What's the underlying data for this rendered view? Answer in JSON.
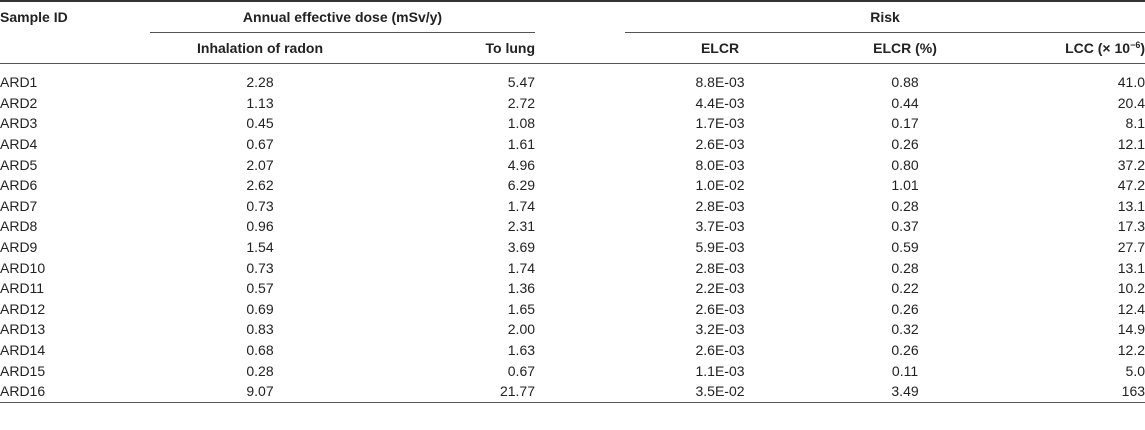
{
  "headers": {
    "sample_id": "Sample ID",
    "annual_effective_dose": "Annual effective dose (mSv/y)",
    "risk": "Risk",
    "inhalation": "Inhalation of radon",
    "to_lung": "To lung",
    "elcr": "ELCR",
    "elcr_pct": "ELCR (%)",
    "lcc_prefix": "LCC (× 10",
    "lcc_exp": "−6",
    "lcc_suffix": ")"
  },
  "rows": [
    {
      "id": "ARD1",
      "inhalation": "2.28",
      "lung": "5.47",
      "elcr": "8.8E-03",
      "elcr_pct": "0.88",
      "lcc": "41.0"
    },
    {
      "id": "ARD2",
      "inhalation": "1.13",
      "lung": "2.72",
      "elcr": "4.4E-03",
      "elcr_pct": "0.44",
      "lcc": "20.4"
    },
    {
      "id": "ARD3",
      "inhalation": "0.45",
      "lung": "1.08",
      "elcr": "1.7E-03",
      "elcr_pct": "0.17",
      "lcc": "8.1"
    },
    {
      "id": "ARD4",
      "inhalation": "0.67",
      "lung": "1.61",
      "elcr": "2.6E-03",
      "elcr_pct": "0.26",
      "lcc": "12.1"
    },
    {
      "id": "ARD5",
      "inhalation": "2.07",
      "lung": "4.96",
      "elcr": "8.0E-03",
      "elcr_pct": "0.80",
      "lcc": "37.2"
    },
    {
      "id": "ARD6",
      "inhalation": "2.62",
      "lung": "6.29",
      "elcr": "1.0E-02",
      "elcr_pct": "1.01",
      "lcc": "47.2"
    },
    {
      "id": "ARD7",
      "inhalation": "0.73",
      "lung": "1.74",
      "elcr": "2.8E-03",
      "elcr_pct": "0.28",
      "lcc": "13.1"
    },
    {
      "id": "ARD8",
      "inhalation": "0.96",
      "lung": "2.31",
      "elcr": "3.7E-03",
      "elcr_pct": "0.37",
      "lcc": "17.3"
    },
    {
      "id": "ARD9",
      "inhalation": "1.54",
      "lung": "3.69",
      "elcr": "5.9E-03",
      "elcr_pct": "0.59",
      "lcc": "27.7"
    },
    {
      "id": "ARD10",
      "inhalation": "0.73",
      "lung": "1.74",
      "elcr": "2.8E-03",
      "elcr_pct": "0.28",
      "lcc": "13.1"
    },
    {
      "id": "ARD11",
      "inhalation": "0.57",
      "lung": "1.36",
      "elcr": "2.2E-03",
      "elcr_pct": "0.22",
      "lcc": "10.2"
    },
    {
      "id": "ARD12",
      "inhalation": "0.69",
      "lung": "1.65",
      "elcr": "2.6E-03",
      "elcr_pct": "0.26",
      "lcc": "12.4"
    },
    {
      "id": "ARD13",
      "inhalation": "0.83",
      "lung": "2.00",
      "elcr": "3.2E-03",
      "elcr_pct": "0.32",
      "lcc": "14.9"
    },
    {
      "id": "ARD14",
      "inhalation": "0.68",
      "lung": "1.63",
      "elcr": "2.6E-03",
      "elcr_pct": "0.26",
      "lcc": "12.2"
    },
    {
      "id": "ARD15",
      "inhalation": "0.28",
      "lung": "0.67",
      "elcr": "1.1E-03",
      "elcr_pct": "0.11",
      "lcc": "5.0"
    },
    {
      "id": "ARD16",
      "inhalation": "9.07",
      "lung": "21.77",
      "elcr": "3.5E-02",
      "elcr_pct": "3.49",
      "lcc": "163"
    }
  ]
}
